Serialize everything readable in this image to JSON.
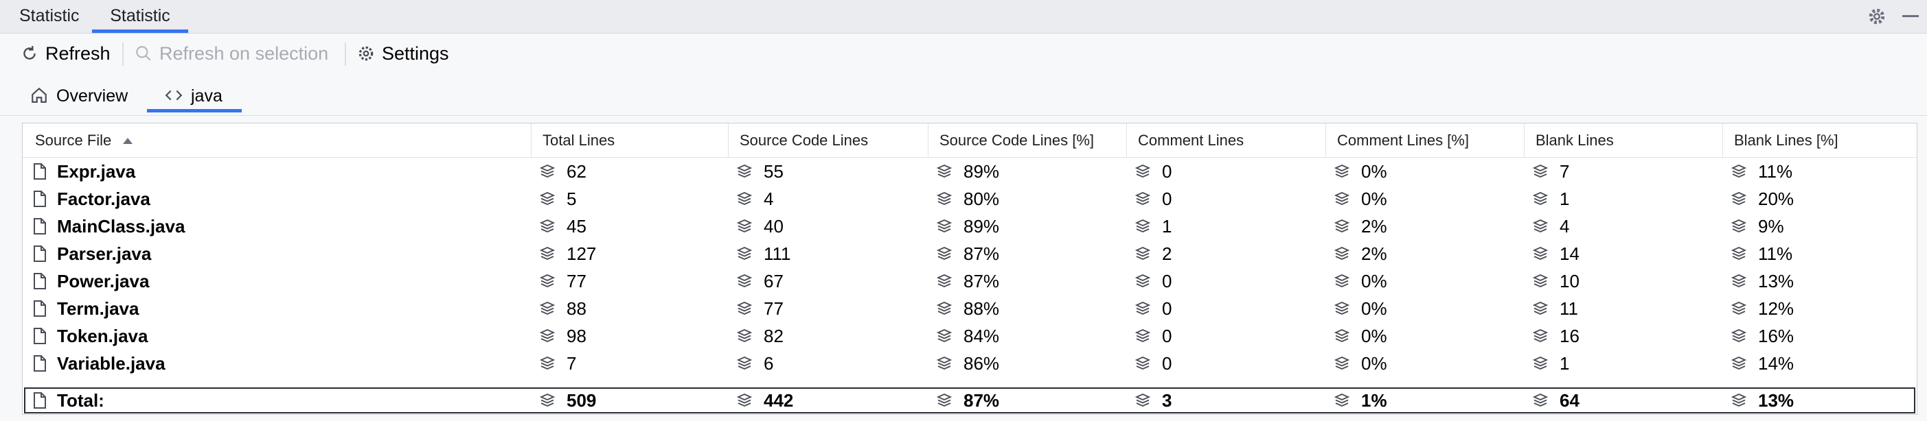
{
  "tool_window_tabs": [
    "Statistic",
    "Statistic"
  ],
  "toolbar": {
    "refresh": "Refresh",
    "refresh_on_selection": "Refresh on selection",
    "settings": "Settings"
  },
  "view_tabs": [
    "Overview",
    "java"
  ],
  "table": {
    "columns": [
      "Source File",
      "Total Lines",
      "Source Code Lines",
      "Source Code Lines [%]",
      "Comment Lines",
      "Comment Lines [%]",
      "Blank Lines",
      "Blank Lines [%]"
    ],
    "rows": [
      [
        "Expr.java",
        "62",
        "55",
        "89%",
        "0",
        "0%",
        "7",
        "11%"
      ],
      [
        "Factor.java",
        "5",
        "4",
        "80%",
        "0",
        "0%",
        "1",
        "20%"
      ],
      [
        "MainClass.java",
        "45",
        "40",
        "89%",
        "1",
        "2%",
        "4",
        "9%"
      ],
      [
        "Parser.java",
        "127",
        "111",
        "87%",
        "2",
        "2%",
        "14",
        "11%"
      ],
      [
        "Power.java",
        "77",
        "67",
        "87%",
        "0",
        "0%",
        "10",
        "13%"
      ],
      [
        "Term.java",
        "88",
        "77",
        "88%",
        "0",
        "0%",
        "11",
        "12%"
      ],
      [
        "Token.java",
        "98",
        "82",
        "84%",
        "0",
        "0%",
        "16",
        "16%"
      ],
      [
        "Variable.java",
        "7",
        "6",
        "86%",
        "0",
        "0%",
        "1",
        "14%"
      ]
    ],
    "total": [
      "Total:",
      "509",
      "442",
      "87%",
      "3",
      "1%",
      "64",
      "13%"
    ]
  }
}
